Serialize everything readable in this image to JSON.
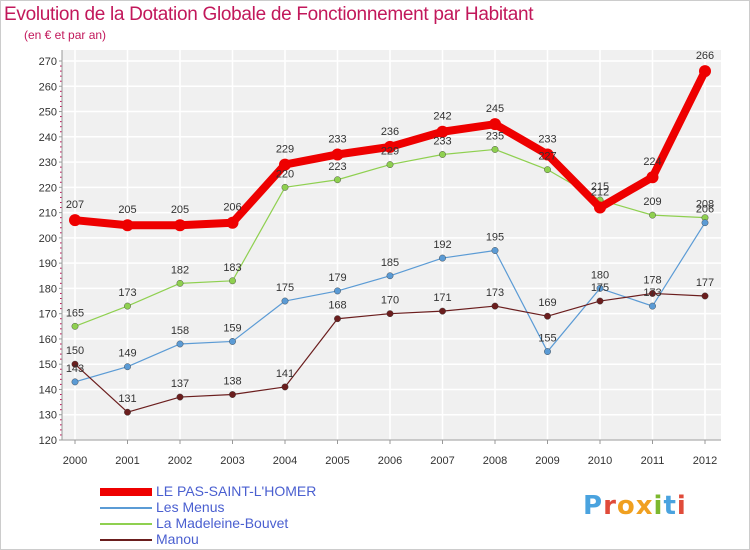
{
  "title": "Evolution de la Dotation Globale de Fonctionnement par Habitant",
  "subtitle": "(en € et par an)",
  "logo": {
    "text": "Proxiti",
    "letters": [
      {
        "ch": "P",
        "color": "#4aa3df"
      },
      {
        "ch": "r",
        "color": "#e04b3a"
      },
      {
        "ch": "o",
        "color": "#f0a020"
      },
      {
        "ch": "x",
        "color": "#f0a020"
      },
      {
        "ch": "i",
        "color": "#7cb82f"
      },
      {
        "ch": "t",
        "color": "#4aa3df"
      },
      {
        "ch": "i",
        "color": "#e04b3a"
      }
    ]
  },
  "chart_data": {
    "type": "line",
    "title": "Evolution de la Dotation Globale de Fonctionnement par Habitant",
    "ylabel": "(en € et par an)",
    "xlabel": "",
    "ylim": [
      120,
      270
    ],
    "yticks": [
      120,
      130,
      140,
      150,
      160,
      170,
      180,
      190,
      200,
      210,
      220,
      230,
      240,
      250,
      260,
      270
    ],
    "categories": [
      "2000",
      "2001",
      "2002",
      "2003",
      "2004",
      "2005",
      "2006",
      "2007",
      "2008",
      "2009",
      "2010",
      "2011",
      "2012"
    ],
    "legend_position": "bottom-left",
    "series": [
      {
        "name": "LE PAS-SAINT-L'HOMER",
        "color": "#ee0000",
        "width": 8,
        "values": [
          207,
          205,
          205,
          206,
          229,
          233,
          236,
          242,
          245,
          233,
          212,
          224,
          266
        ]
      },
      {
        "name": "Les Menus",
        "color": "#5b9bd5",
        "width": 1.2,
        "values": [
          143,
          149,
          158,
          159,
          175,
          179,
          185,
          192,
          195,
          155,
          180,
          173,
          206
        ]
      },
      {
        "name": "La Madeleine-Bouvet",
        "color": "#8fd050",
        "width": 1.2,
        "values": [
          165,
          173,
          182,
          183,
          220,
          223,
          229,
          233,
          235,
          227,
          215,
          209,
          208
        ]
      },
      {
        "name": "Manou",
        "color": "#6b1e1e",
        "width": 1.2,
        "values": [
          150,
          131,
          137,
          138,
          141,
          168,
          170,
          171,
          173,
          169,
          175,
          178,
          177
        ]
      }
    ]
  }
}
